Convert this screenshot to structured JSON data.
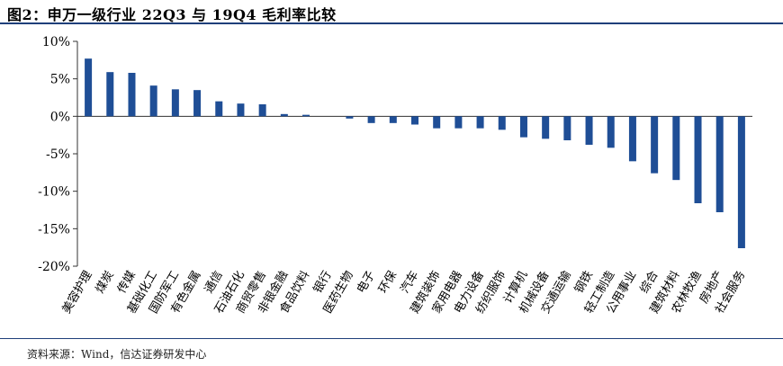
{
  "figure": {
    "title": "图2：申万一级行业 22Q3 与 19Q4 毛利率比较",
    "source": "资料来源：Wind，信达证券研发中心"
  },
  "colors": {
    "bar": "#1f4e96",
    "axis": "#333333"
  },
  "chart_data": {
    "type": "bar",
    "title": "",
    "xlabel": "",
    "ylabel": "",
    "ylim": [
      -20,
      10
    ],
    "yticks": [
      10,
      5,
      0,
      -5,
      -10,
      -15,
      -20
    ],
    "ytick_labels": [
      "10%",
      "5%",
      "0%",
      "-5%",
      "-10%",
      "-15%",
      "-20%"
    ],
    "grid": false,
    "categories": [
      "美容护理",
      "煤炭",
      "传媒",
      "基础化工",
      "国防军工",
      "有色金属",
      "通信",
      "石油石化",
      "商贸零售",
      "非银金融",
      "食品饮料",
      "银行",
      "医药生物",
      "电子",
      "环保",
      "汽车",
      "建筑装饰",
      "家用电器",
      "电力设备",
      "纺织服饰",
      "计算机",
      "机械设备",
      "交通运输",
      "钢铁",
      "轻工制造",
      "公用事业",
      "综合",
      "建筑材料",
      "农林牧渔",
      "房地产",
      "社会服务"
    ],
    "values": [
      7.7,
      5.9,
      5.8,
      4.1,
      3.6,
      3.5,
      2.0,
      1.7,
      1.6,
      0.3,
      0.2,
      0.0,
      -0.3,
      -0.9,
      -0.9,
      -1.1,
      -1.6,
      -1.6,
      -1.6,
      -1.8,
      -2.8,
      -3.0,
      -3.2,
      -3.8,
      -4.2,
      -6.0,
      -7.6,
      -8.5,
      -11.6,
      -12.8,
      -17.6
    ]
  }
}
